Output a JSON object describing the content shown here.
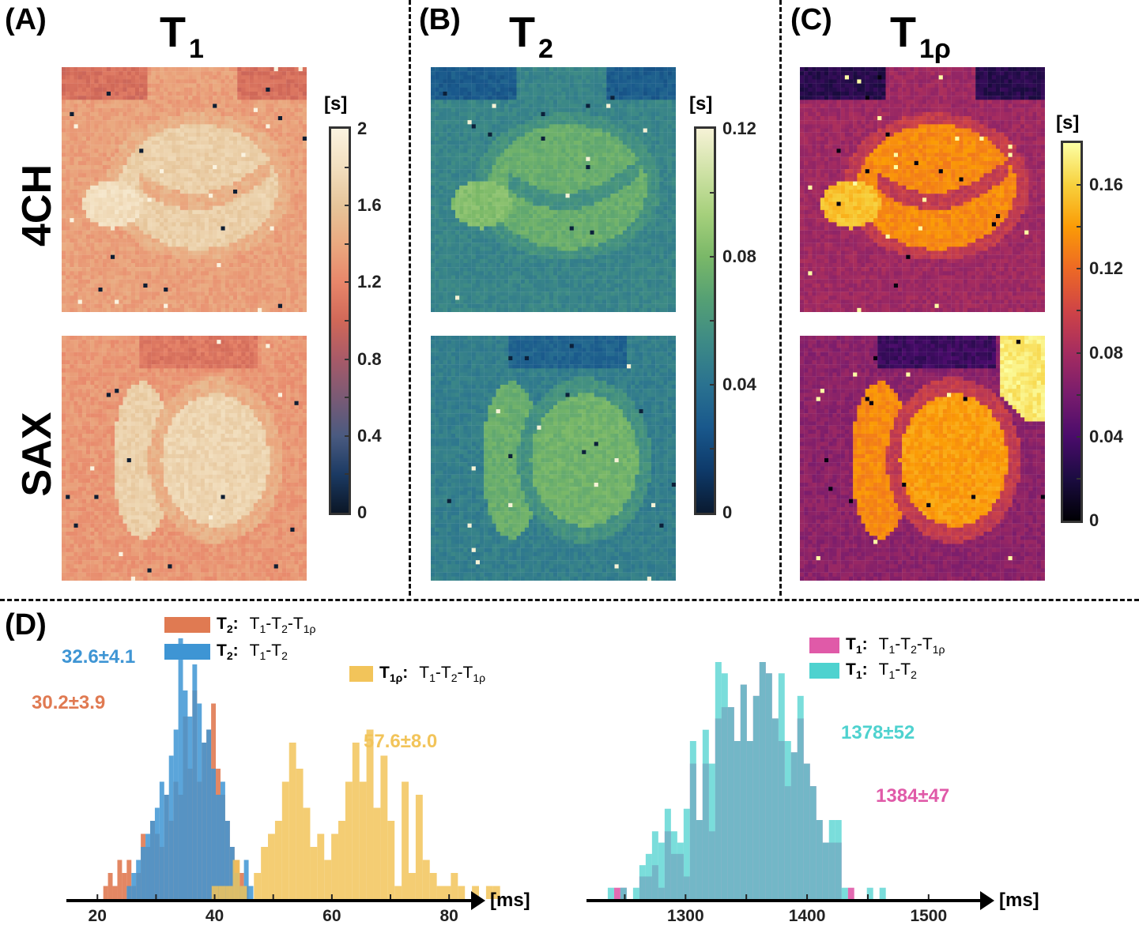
{
  "panels": {
    "A": {
      "label": "(A)",
      "title_main": "T",
      "title_sub": "1"
    },
    "B": {
      "label": "(B)",
      "title_main": "T",
      "title_sub": "2"
    },
    "C": {
      "label": "(C)",
      "title_main": "T",
      "title_sub": "1ρ"
    },
    "D": {
      "label": "(D)"
    }
  },
  "row_labels": [
    "4CH",
    "SAX"
  ],
  "colorbars": [
    {
      "id": "t1",
      "unit": "[s]",
      "min": 0,
      "max": 2,
      "ticks": [
        "0",
        "0.4",
        "0.8",
        "1.2",
        "1.6",
        "2"
      ],
      "tick_values": [
        0,
        0.4,
        0.8,
        1.2,
        1.6,
        2
      ],
      "minor_step": 0.2,
      "colormap": [
        "#0b1626",
        "#1b3a63",
        "#4a5a80",
        "#7a5a75",
        "#a85a68",
        "#d06858",
        "#e8866a",
        "#eaa980",
        "#e6c59a",
        "#f2dfbf",
        "#fbf3e0"
      ]
    },
    {
      "id": "t2",
      "unit": "[s]",
      "min": 0,
      "max": 0.12,
      "ticks": [
        "0",
        "0.04",
        "0.08",
        "0.12"
      ],
      "tick_values": [
        0,
        0.04,
        0.08,
        0.12
      ],
      "minor_step": 0.02,
      "colormap": [
        "#0a1a30",
        "#0e3a6a",
        "#19588c",
        "#2a7290",
        "#3d8a86",
        "#55a074",
        "#7ab868",
        "#a6d07c",
        "#cfe2a6",
        "#f6f2d6"
      ]
    },
    {
      "id": "t1rho",
      "unit": "[s]",
      "min": 0,
      "max": 0.18,
      "ticks": [
        "0",
        "0.04",
        "0.08",
        "0.12",
        "0.16"
      ],
      "tick_values": [
        0,
        0.04,
        0.08,
        0.12,
        0.16
      ],
      "minor_step": 0.02,
      "colormap": [
        "#000004",
        "#1b0c41",
        "#4a0c6b",
        "#781c6d",
        "#a52c60",
        "#cf4446",
        "#ed6925",
        "#fb9b06",
        "#f7d13d",
        "#fcffa4"
      ]
    }
  ],
  "chart_data": [
    {
      "type": "histogram",
      "title": "",
      "xlabel": "[ms]",
      "ylabel": "",
      "xlim": [
        17,
        82
      ],
      "xticks": [
        20,
        40,
        60,
        80
      ],
      "grid": false,
      "legend_position": "top",
      "series": [
        {
          "name_main": "T",
          "name_sub": "2",
          "desc": [
            "T",
            "1",
            "-T",
            "2",
            "-T",
            "1ρ"
          ],
          "color": "#e07a52",
          "stat": "30.2±3.9",
          "bin_start": 21,
          "bin_width": 0.8,
          "counts": [
            1,
            2,
            1,
            3,
            2,
            3,
            1,
            2,
            5,
            4,
            6,
            5,
            4,
            8,
            6,
            9,
            8,
            14,
            10,
            16,
            9,
            12,
            13,
            15,
            10,
            8,
            6,
            4,
            3,
            2,
            1
          ]
        },
        {
          "name_main": "T",
          "name_sub": "2",
          "desc": [
            "T",
            "1",
            "-T",
            "2"
          ],
          "color": "#3e95d4",
          "stat": "32.6±4.1",
          "bin_start": 25,
          "bin_width": 0.8,
          "counts": [
            1,
            2,
            3,
            4,
            5,
            6,
            7,
            9,
            8,
            11,
            13,
            20,
            16,
            14,
            18,
            15,
            12,
            13,
            10,
            8,
            9,
            6,
            4,
            2,
            1,
            3,
            1
          ]
        },
        {
          "name_main": "T",
          "name_sub": "1ρ",
          "desc": [
            "T",
            "1",
            "-T",
            "2",
            "-T",
            "1ρ"
          ],
          "color": "#f2c45a",
          "stat": "57.6±8.0",
          "bin_start": 39.5,
          "bin_width": 1.2,
          "counts": [
            1,
            1,
            1,
            3,
            1,
            0,
            2,
            4,
            5,
            6,
            9,
            12,
            10,
            7,
            4,
            5,
            3,
            5,
            6,
            9,
            12,
            9,
            13,
            7,
            11,
            6,
            1,
            9,
            2,
            8,
            3,
            2,
            1,
            1,
            2,
            1,
            0,
            1,
            0,
            1,
            1
          ]
        }
      ]
    },
    {
      "type": "histogram",
      "title": "",
      "xlabel": "[ms]",
      "ylabel": "",
      "xlim": [
        1225,
        1545
      ],
      "xticks": [
        1300,
        1400,
        1500
      ],
      "grid": false,
      "legend_position": "top-right",
      "series": [
        {
          "name_main": "T",
          "name_sub": "1",
          "desc": [
            "T",
            "1",
            "-T",
            "2",
            "-T",
            "1ρ"
          ],
          "color": "#e05aa8",
          "stat": "1384±47",
          "bin_start": 1236,
          "bin_width": 5.2,
          "counts": [
            0,
            1,
            1,
            0,
            0,
            2,
            2,
            3,
            1,
            6,
            4,
            4,
            2,
            12,
            7,
            12,
            6,
            16,
            17,
            17,
            14,
            19,
            14,
            18,
            21,
            20,
            16,
            14,
            10,
            13,
            16,
            12,
            10,
            7,
            5,
            5,
            5,
            0,
            1,
            0,
            0,
            0,
            0,
            0,
            0
          ]
        },
        {
          "name_main": "T",
          "name_sub": "1",
          "desc": [
            "T",
            "1",
            "-T",
            "2"
          ],
          "color": "#4ed2cf",
          "stat": "1378±52",
          "bin_start": 1236,
          "bin_width": 5.2,
          "counts": [
            1,
            0,
            1,
            0,
            1,
            3,
            4,
            6,
            5,
            8,
            6,
            5,
            8,
            14,
            7,
            15,
            12,
            21,
            20,
            17,
            14,
            19,
            14,
            18,
            21,
            20,
            16,
            20,
            14,
            13,
            18,
            12,
            10,
            7,
            5,
            7,
            7,
            1,
            0,
            0,
            0,
            1,
            0,
            1,
            0
          ]
        }
      ]
    }
  ],
  "stats_colors": {
    "t2_t1t2t1rho": "#e07a52",
    "t2_t1t2": "#3e95d4",
    "t1rho": "#f2c45a",
    "t1_t1t2t1rho": "#e05aa8",
    "t1_t1t2": "#4ed2cf"
  }
}
